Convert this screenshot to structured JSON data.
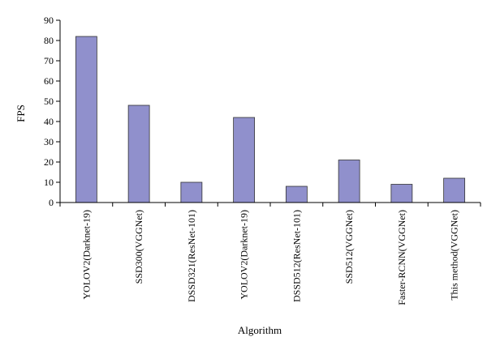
{
  "chart_data": {
    "type": "bar",
    "title": "",
    "xlabel": "Algorithm",
    "ylabel": "FPS",
    "ylim": [
      0,
      90
    ],
    "yticks": [
      0,
      10,
      20,
      30,
      40,
      50,
      60,
      70,
      80,
      90
    ],
    "grid": false,
    "legend": "none",
    "categories": [
      "YOLOV2(Darknet-19)",
      "SSD300(VGGNet)",
      "DSSD321(ResNet-101)",
      "YOLOV2(Darknet-19)",
      "DSSD512(ResNet-101)",
      "SSD512(VGGNet)",
      "Faster-RCNN(VGGNet)",
      "This method(VGGNet)"
    ],
    "values": [
      82,
      48,
      10,
      42,
      8,
      21,
      9,
      12
    ],
    "colors": {
      "bar_fill": "#9090cc",
      "bar_stroke": "#333333",
      "axis": "#000000"
    }
  }
}
